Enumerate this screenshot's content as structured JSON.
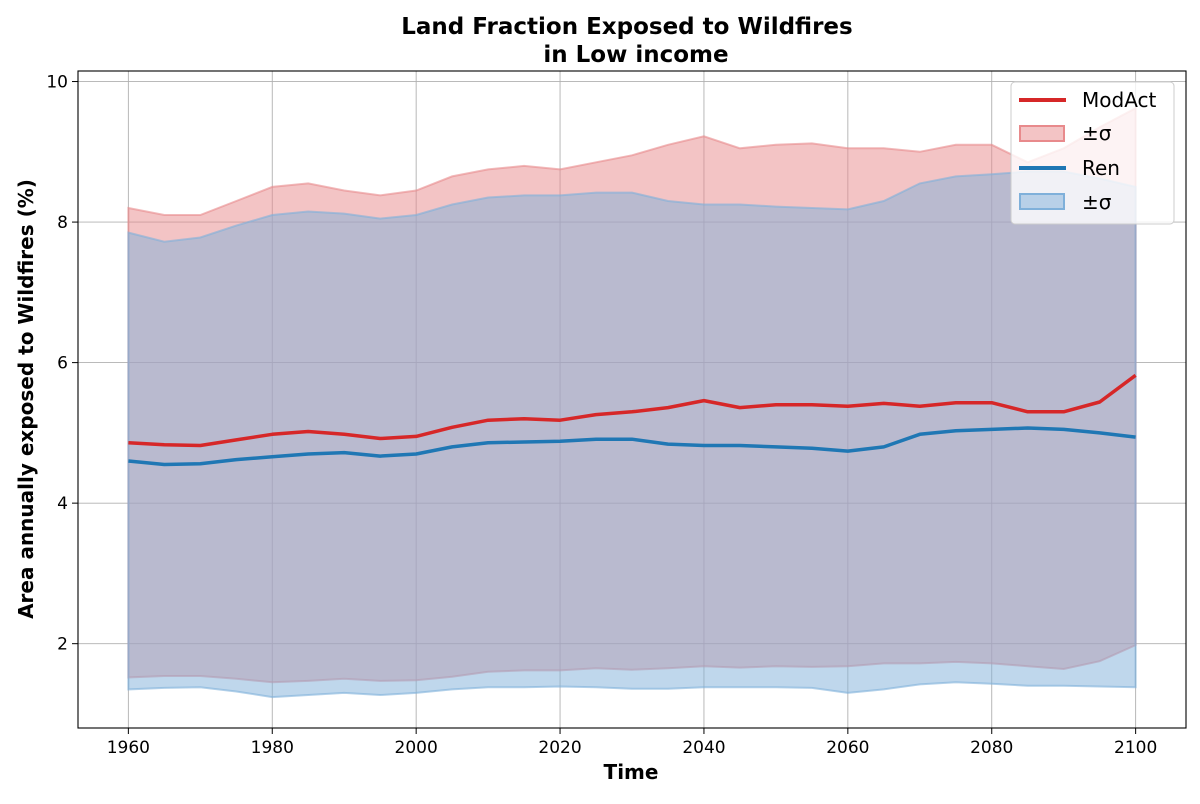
{
  "chart_data": {
    "type": "line",
    "title": "Land Fraction Exposed to Wildfires",
    "subtitle": "in Low income",
    "xlabel": "Time",
    "ylabel": "Area annually exposed to Wildfires (%)",
    "xlim": [
      1953,
      2107
    ],
    "ylim": [
      0.8,
      10.15
    ],
    "xticks": [
      1960,
      1980,
      2000,
      2020,
      2040,
      2060,
      2080,
      2100
    ],
    "yticks": [
      2,
      4,
      6,
      8,
      10
    ],
    "grid": true,
    "legend_position": "top-right",
    "x": [
      1960,
      1965,
      1970,
      1975,
      1980,
      1985,
      1990,
      1995,
      2000,
      2005,
      2010,
      2015,
      2020,
      2025,
      2030,
      2035,
      2040,
      2045,
      2050,
      2055,
      2060,
      2065,
      2070,
      2075,
      2080,
      2085,
      2090,
      2095,
      2100
    ],
    "series": [
      {
        "name": "ModAct",
        "color": "#d62728",
        "band_label": "±σ",
        "band_color": "#e88a8c",
        "values": [
          4.86,
          4.83,
          4.82,
          4.9,
          4.98,
          5.02,
          4.98,
          4.92,
          4.95,
          5.08,
          5.18,
          5.2,
          5.18,
          5.26,
          5.3,
          5.36,
          5.46,
          5.36,
          5.4,
          5.4,
          5.38,
          5.42,
          5.38,
          5.43,
          5.43,
          5.3,
          5.3,
          5.44,
          5.82
        ],
        "upper": [
          8.2,
          8.1,
          8.1,
          8.3,
          8.5,
          8.55,
          8.45,
          8.38,
          8.45,
          8.65,
          8.75,
          8.8,
          8.75,
          8.85,
          8.95,
          9.1,
          9.22,
          9.05,
          9.1,
          9.12,
          9.05,
          9.05,
          9.0,
          9.1,
          9.1,
          8.85,
          9.05,
          9.35,
          9.62
        ],
        "lower": [
          1.52,
          1.54,
          1.54,
          1.5,
          1.45,
          1.47,
          1.5,
          1.47,
          1.48,
          1.53,
          1.6,
          1.62,
          1.62,
          1.65,
          1.63,
          1.65,
          1.68,
          1.66,
          1.68,
          1.67,
          1.68,
          1.72,
          1.72,
          1.74,
          1.72,
          1.68,
          1.64,
          1.75,
          1.98
        ]
      },
      {
        "name": "Ren",
        "color": "#1f77b4",
        "band_label": "±σ",
        "band_color": "#7fb0da",
        "values": [
          4.6,
          4.55,
          4.56,
          4.62,
          4.66,
          4.7,
          4.72,
          4.67,
          4.7,
          4.8,
          4.86,
          4.87,
          4.88,
          4.91,
          4.91,
          4.84,
          4.82,
          4.82,
          4.8,
          4.78,
          4.74,
          4.8,
          4.98,
          5.03,
          5.05,
          5.07,
          5.05,
          5.0,
          4.94
        ],
        "upper": [
          7.85,
          7.72,
          7.78,
          7.95,
          8.1,
          8.15,
          8.12,
          8.05,
          8.1,
          8.25,
          8.35,
          8.38,
          8.38,
          8.42,
          8.42,
          8.3,
          8.25,
          8.25,
          8.22,
          8.2,
          8.18,
          8.3,
          8.55,
          8.65,
          8.68,
          8.72,
          8.72,
          8.62,
          8.5
        ],
        "lower": [
          1.35,
          1.37,
          1.38,
          1.32,
          1.24,
          1.27,
          1.3,
          1.27,
          1.3,
          1.35,
          1.38,
          1.38,
          1.39,
          1.38,
          1.36,
          1.36,
          1.38,
          1.38,
          1.38,
          1.37,
          1.3,
          1.35,
          1.42,
          1.45,
          1.43,
          1.4,
          1.4,
          1.39,
          1.38
        ]
      }
    ]
  }
}
